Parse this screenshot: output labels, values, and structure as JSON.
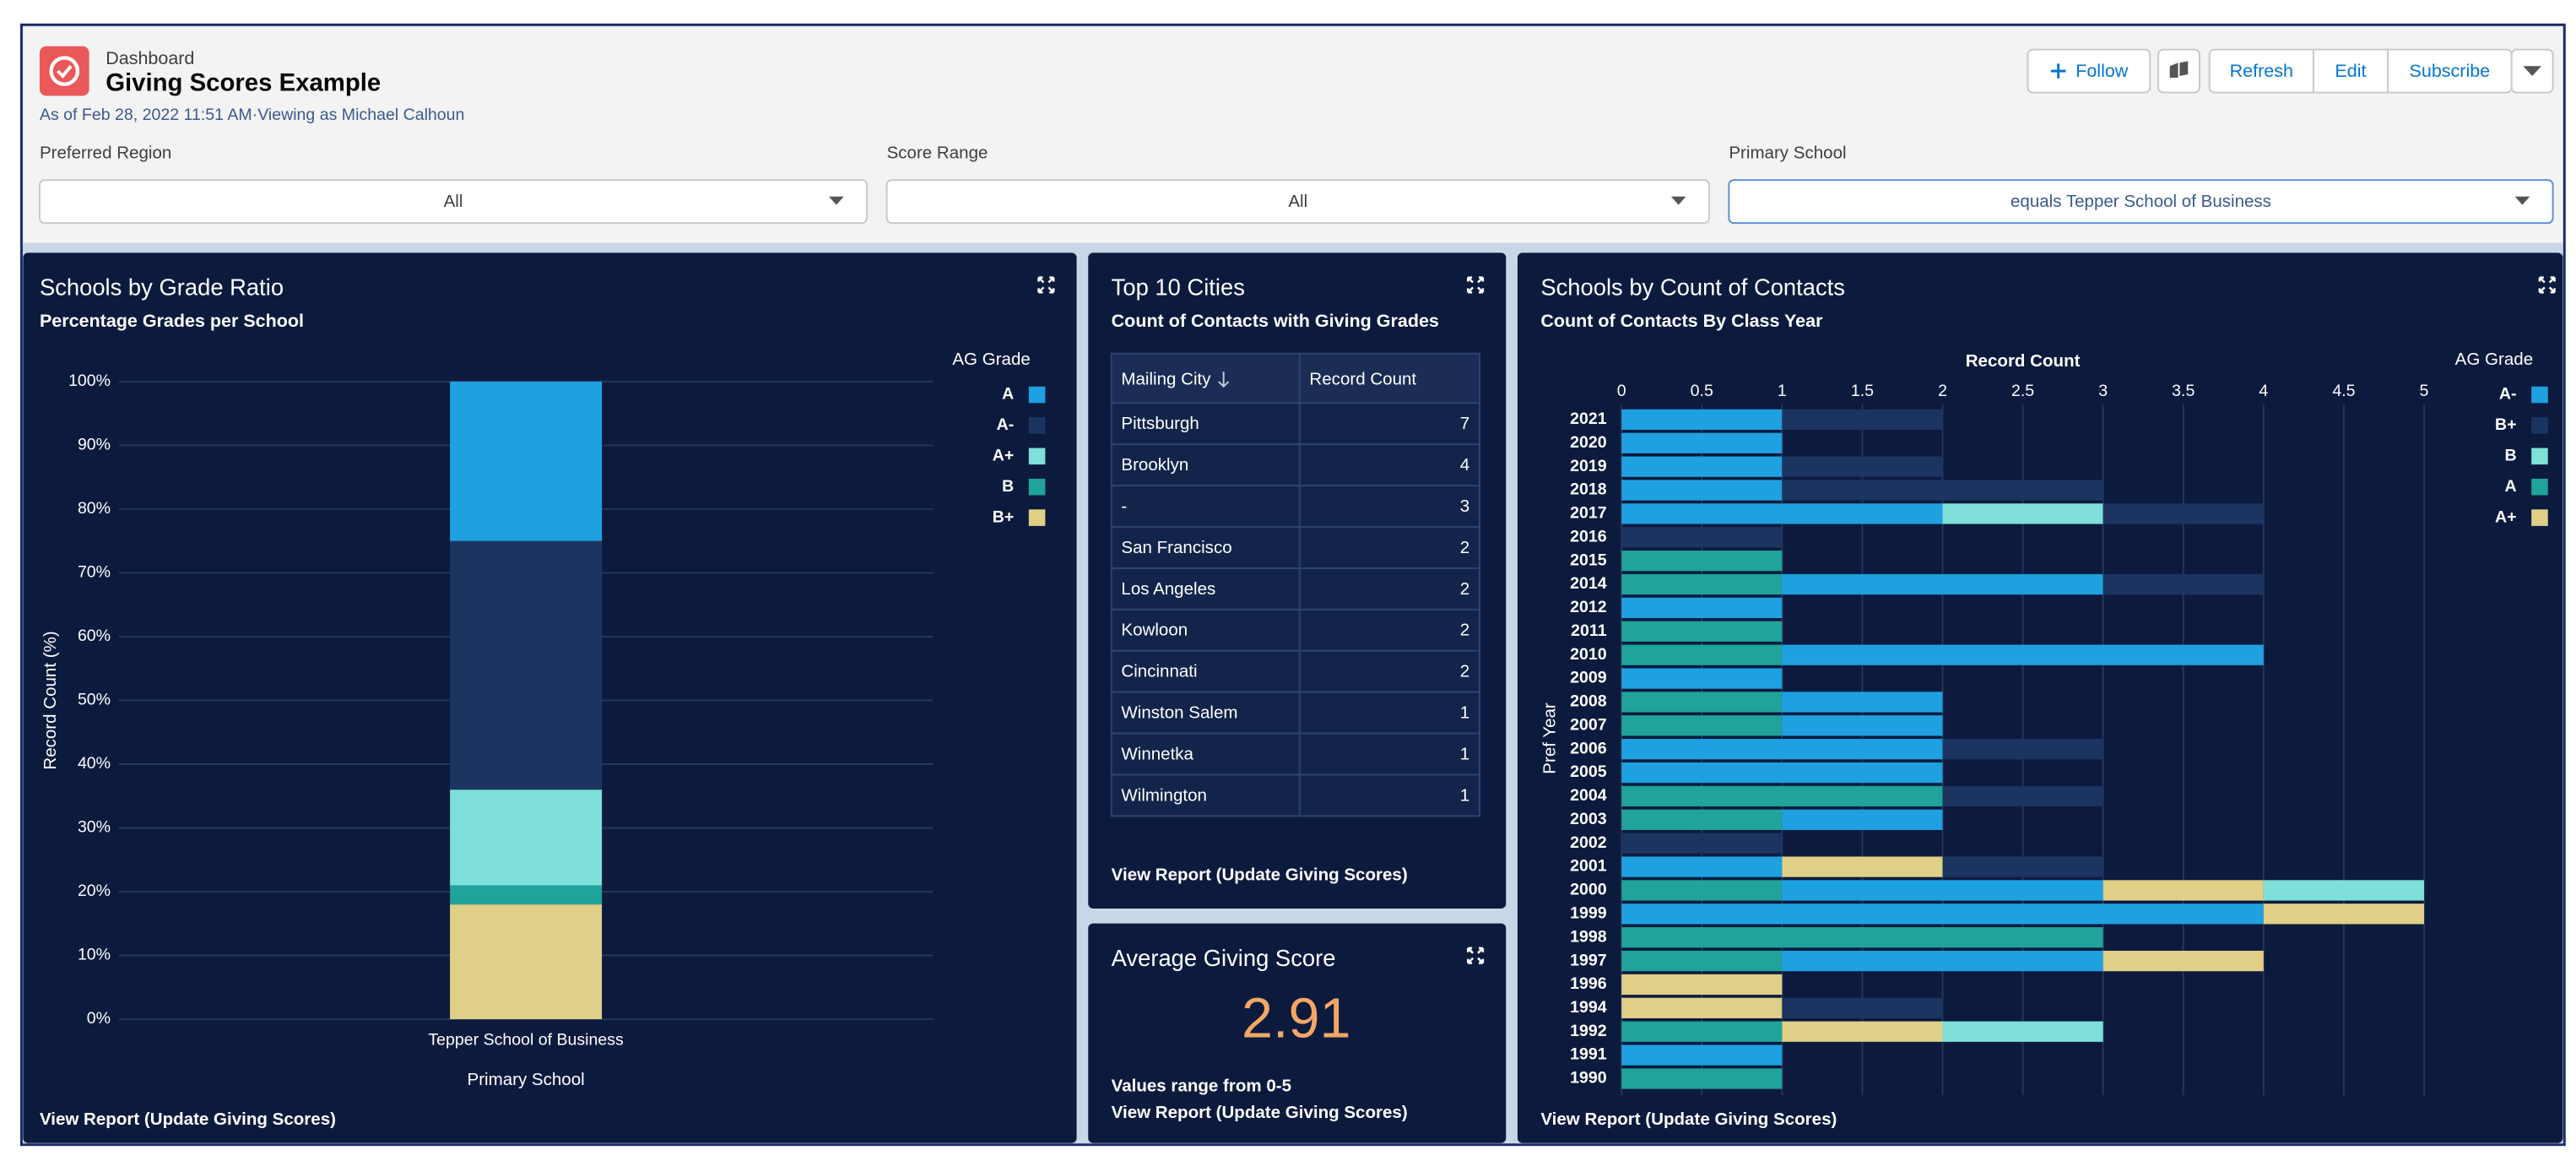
{
  "header": {
    "context": "Dashboard",
    "title": "Giving Scores Example",
    "subtitle": "As of Feb 28, 2022 11:51 AM·Viewing as Michael Calhoun",
    "buttons": [
      "Follow",
      "Refresh",
      "Edit",
      "Subscribe"
    ]
  },
  "filters": [
    {
      "label": "Preferred Region",
      "value": "All"
    },
    {
      "label": "Score Range",
      "value": "All"
    },
    {
      "label": "Primary School",
      "value": "equals Tepper School of Business"
    }
  ],
  "widgets": {
    "grade_ratio": {
      "title": "Schools by Grade Ratio",
      "subtitle": "Percentage Grades per School",
      "footer": "View Report (Update Giving Scores)",
      "chart": {
        "type": "bar",
        "stacked": true,
        "categories": [
          "Tepper School of Business"
        ],
        "series": [
          {
            "name": "B+",
            "color": "#e0cf87",
            "values": [
              18
            ]
          },
          {
            "name": "B",
            "color": "#1fa39a",
            "values": [
              3
            ]
          },
          {
            "name": "A+",
            "color": "#7ee0d8",
            "values": [
              15
            ]
          },
          {
            "name": "A-",
            "color": "#1b3560",
            "values": [
              39
            ]
          },
          {
            "name": "A",
            "color": "#1fa0e0",
            "values": [
              25
            ]
          }
        ],
        "ylim": [
          0,
          100
        ],
        "yticks": [
          {
            "value": 0,
            "label": "0%"
          },
          {
            "value": 10,
            "label": "10%"
          },
          {
            "value": 20,
            "label": "20%"
          },
          {
            "value": 30,
            "label": "30%"
          },
          {
            "value": 40,
            "label": "40%"
          },
          {
            "value": 50,
            "label": "50%"
          },
          {
            "value": 60,
            "label": "60%"
          },
          {
            "value": 70,
            "label": "70%"
          },
          {
            "value": 80,
            "label": "80%"
          },
          {
            "value": 90,
            "label": "90%"
          },
          {
            "value": 100,
            "label": "100%"
          }
        ],
        "y_label": "Record Count (%)",
        "x_label": "Primary School",
        "legend_title": "AG Grade",
        "legend": [
          "A",
          "A-",
          "A+",
          "B",
          "B+"
        ],
        "grid": true
      }
    },
    "top_cities": {
      "title": "Top 10 Cities",
      "subtitle": "Count of Contacts with Giving Grades",
      "footer": "View Report (Update Giving Scores)",
      "table": {
        "columns": [
          "Mailing City",
          "Record Count"
        ],
        "rows": [
          [
            "Pittsburgh",
            7
          ],
          [
            "Brooklyn",
            4
          ],
          [
            "-",
            3
          ],
          [
            "San Francisco",
            2
          ],
          [
            "Los Angeles",
            2
          ],
          [
            "Kowloon",
            2
          ],
          [
            "Cincinnati",
            2
          ],
          [
            "Winston Salem",
            1
          ],
          [
            "Winnetka",
            1
          ],
          [
            "Wilmington",
            1
          ]
        ]
      }
    },
    "average_score": {
      "title": "Average Giving Score",
      "value": 2.91,
      "note": "Values range from 0-5",
      "footer": "View Report (Update Giving Scores)"
    },
    "contacts_by_year": {
      "title": "Schools by Count of Contacts",
      "subtitle": "Count of Contacts By Class Year",
      "footer": "View Report (Update Giving Scores)",
      "chart": {
        "type": "bar",
        "orientation": "horizontal",
        "stacked": true,
        "categories": [
          "2021",
          "2020",
          "2019",
          "2018",
          "2017",
          "2016",
          "2015",
          "2014",
          "2012",
          "2011",
          "2010",
          "2009",
          "2008",
          "2007",
          "2006",
          "2005",
          "2004",
          "2003",
          "2002",
          "2001",
          "2000",
          "1999",
          "1998",
          "1997",
          "1996",
          "1994",
          "1992",
          "1991",
          "1990"
        ],
        "series": [
          {
            "name": "A",
            "color": "#1fa39a",
            "values": [
              0,
              0,
              0,
              0,
              0,
              0,
              1,
              1,
              0,
              1,
              1,
              0,
              1,
              1,
              0,
              0,
              2,
              1,
              0,
              0,
              1,
              0,
              3,
              1,
              0,
              0,
              1,
              0,
              1
            ]
          },
          {
            "name": "A-",
            "color": "#1fa0e0",
            "values": [
              1,
              1,
              1,
              1,
              2,
              0,
              0,
              2,
              1,
              0,
              3,
              1,
              1,
              1,
              2,
              2,
              0,
              1,
              0,
              1,
              2,
              4,
              0,
              2,
              0,
              0,
              0,
              1,
              0
            ]
          },
          {
            "name": "A+",
            "color": "#e0cf87",
            "values": [
              0,
              0,
              0,
              0,
              0,
              0,
              0,
              0,
              0,
              0,
              0,
              0,
              0,
              0,
              0,
              0,
              0,
              0,
              0,
              1,
              1,
              1,
              0,
              1,
              1,
              1,
              1,
              0,
              0
            ]
          },
          {
            "name": "B",
            "color": "#7ee0d8",
            "values": [
              0,
              0,
              0,
              0,
              1,
              0,
              0,
              0,
              0,
              0,
              0,
              0,
              0,
              0,
              0,
              0,
              0,
              0,
              0,
              0,
              1,
              0,
              0,
              0,
              0,
              0,
              1,
              0,
              0
            ]
          },
          {
            "name": "B+",
            "color": "#1b3560",
            "values": [
              1,
              0,
              1,
              2,
              1,
              1,
              0,
              1,
              0,
              0,
              0,
              0,
              0,
              0,
              1,
              0,
              1,
              0,
              1,
              1,
              0,
              0,
              0,
              0,
              0,
              1,
              0,
              0,
              0
            ]
          }
        ],
        "xlim": [
          0,
          5
        ],
        "xticks": [
          0,
          0.5,
          1,
          1.5,
          2,
          2.5,
          3,
          3.5,
          4,
          4.5,
          5
        ],
        "x_label": "Record Count",
        "y_label": "Pref Year",
        "legend_title": "AG Grade",
        "legend": [
          "A-",
          "B+",
          "B",
          "A",
          "A+"
        ],
        "grid": true
      }
    }
  }
}
